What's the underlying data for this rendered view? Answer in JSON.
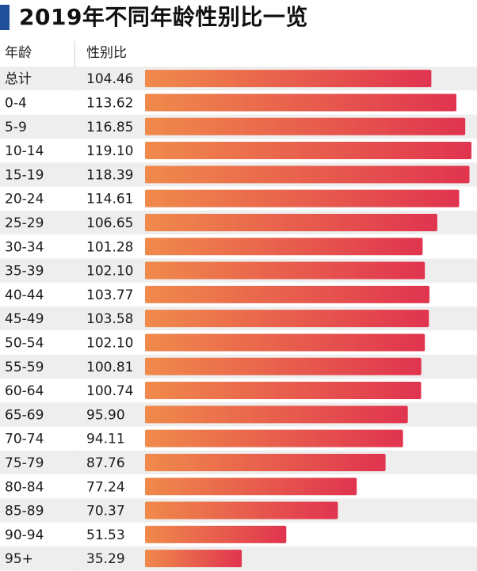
{
  "title": "2019年不同年龄性别比一览",
  "headers": {
    "age": "年龄",
    "ratio": "性别比"
  },
  "colors": {
    "accent": "#1f4f9b",
    "bar_start": "#f08a4b",
    "bar_end": "#e0344f",
    "row_alt": "#eeeeee",
    "row_base": "#ffffff"
  },
  "chart_data": {
    "type": "bar",
    "orientation": "horizontal",
    "title": "2019年不同年龄性别比一览",
    "xlabel": "",
    "ylabel": "",
    "categories": [
      "总计",
      "0-4",
      "5-9",
      "10-14",
      "15-19",
      "20-24",
      "25-29",
      "30-34",
      "35-39",
      "40-44",
      "45-49",
      "50-54",
      "55-59",
      "60-64",
      "65-69",
      "70-74",
      "75-79",
      "80-84",
      "85-89",
      "90-94",
      "95+"
    ],
    "value_labels": [
      "104.46",
      "113.62",
      "116.85",
      "119.10",
      "118.39",
      "114.61",
      "106.65",
      "101.28",
      "102.10",
      "103.77",
      "103.58",
      "102.10",
      "100.81",
      "100.74",
      "95.90",
      "94.11",
      "87.76",
      "77.24",
      "70.37",
      "51.53",
      "35.29"
    ],
    "values": [
      104.46,
      113.62,
      116.85,
      119.1,
      118.39,
      114.61,
      106.65,
      101.28,
      102.1,
      103.77,
      103.58,
      102.1,
      100.81,
      100.74,
      95.9,
      94.11,
      87.76,
      77.24,
      70.37,
      51.53,
      35.29
    ],
    "xlim": [
      0,
      119.1
    ],
    "grid": false
  }
}
